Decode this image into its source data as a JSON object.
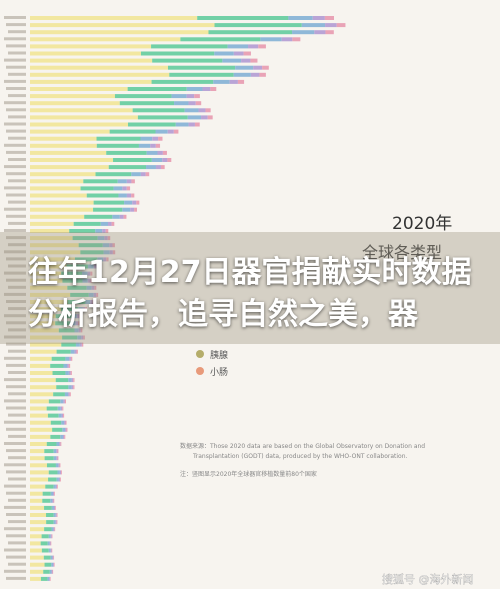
{
  "chart_heading": {
    "year": "2020年",
    "subtitle": "全球各类型"
  },
  "legend": [
    {
      "label": "胰腺",
      "color": "#b5ad6a"
    },
    {
      "label": "小肠",
      "color": "#e89a7a"
    }
  ],
  "source": {
    "line1": "数据来源：Those 2020 data are based on the Global Observatory on Donation and",
    "line2": "Transplantation (GODT) data, produced by the WHO-ONT collaboration.",
    "note": "注：竖图显示2020年全球器官移植数量前80个国家"
  },
  "overlay_title": "往年12月27日器官捐献实时数据分析报告，追寻自然之美，器",
  "watermark": "搜狐号 @海外新闻"
}
